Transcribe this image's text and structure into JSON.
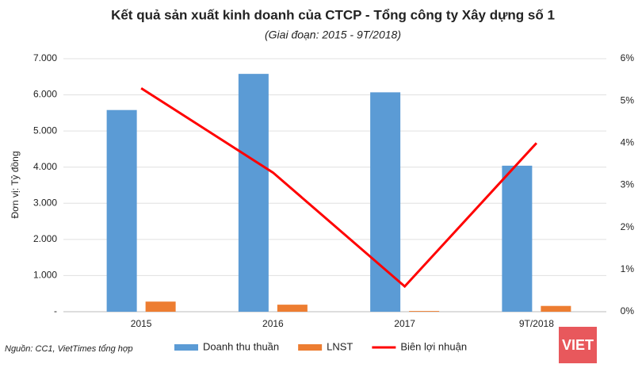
{
  "chart_data": {
    "type": "bar-line",
    "title": "Kết quả sản xuất kinh doanh của CTCP - Tổng công ty Xây dựng số 1",
    "subtitle": "(Giai đoạn: 2015 - 9T/2018)",
    "y_label": "Đơn vị: Tỷ đồng",
    "source": "Nguồn: CC1, VietTimes tổng hợp",
    "categories": [
      "2015",
      "2016",
      "2017",
      "9T/2018"
    ],
    "series": [
      {
        "name": "Doanh thu thuần",
        "type": "bar",
        "color": "#5b9bd5",
        "values": [
          5580,
          6580,
          6070,
          4040
        ]
      },
      {
        "name": "LNST",
        "type": "bar",
        "color": "#ed7d31",
        "values": [
          280,
          195,
          20,
          160
        ]
      },
      {
        "name": "Biên lợi nhuận",
        "type": "line",
        "axis": "y2",
        "color": "#ff0000",
        "values": [
          5.3,
          3.3,
          0.6,
          4.0
        ]
      }
    ],
    "ylim": [
      0,
      7000
    ],
    "yticks": [
      {
        "value": 0,
        "label": "-"
      },
      {
        "value": 1000,
        "label": "1.000"
      },
      {
        "value": 2000,
        "label": "2.000"
      },
      {
        "value": 3000,
        "label": "3.000"
      },
      {
        "value": 4000,
        "label": "4.000"
      },
      {
        "value": 5000,
        "label": "5.000"
      },
      {
        "value": 6000,
        "label": "6.000"
      },
      {
        "value": 7000,
        "label": "7.000"
      }
    ],
    "y2lim": [
      0,
      6
    ],
    "y2ticks": [
      {
        "value": 0,
        "label": "0%"
      },
      {
        "value": 1,
        "label": "1%"
      },
      {
        "value": 2,
        "label": "2%"
      },
      {
        "value": 3,
        "label": "3%"
      },
      {
        "value": 4,
        "label": "4%"
      },
      {
        "value": 5,
        "label": "5%"
      },
      {
        "value": 6,
        "label": "6%"
      }
    ],
    "grid": true,
    "legend": "bottom"
  },
  "logo": "VIET"
}
